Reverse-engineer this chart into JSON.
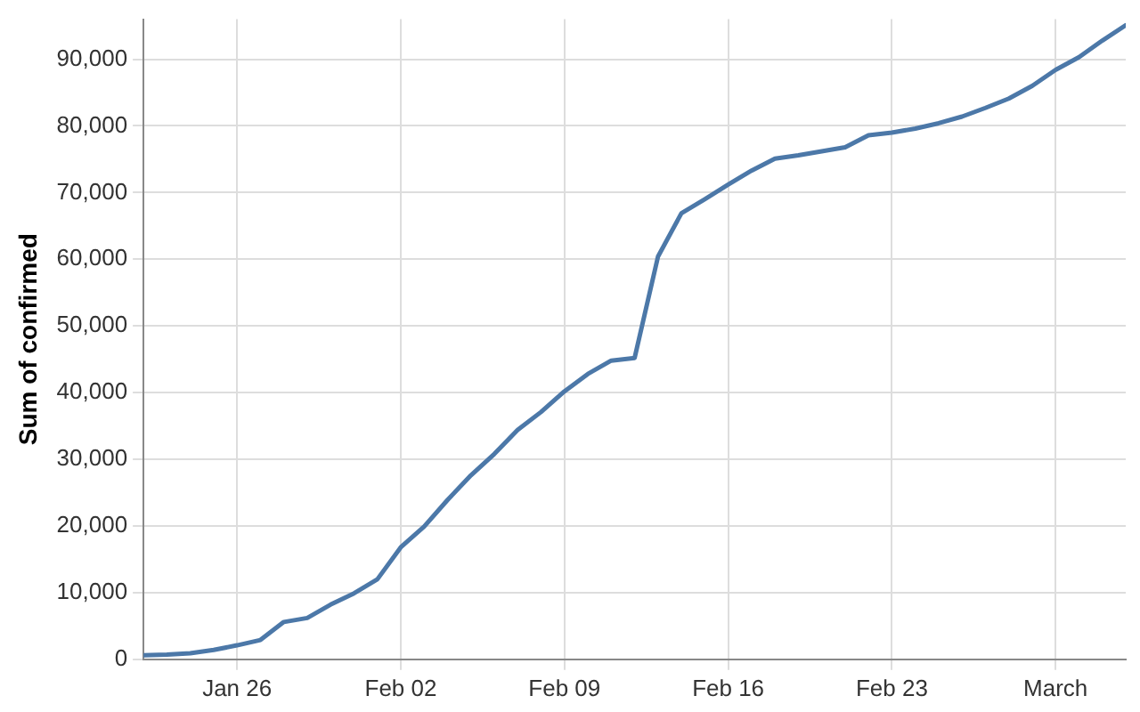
{
  "chart_data": {
    "type": "line",
    "ylabel": "Sum of confirmed",
    "x": [
      "--01-22",
      "--01-23",
      "--01-24",
      "--01-25",
      "--01-26",
      "--01-27",
      "--01-28",
      "--01-29",
      "--01-30",
      "--01-31",
      "--02-01",
      "--02-02",
      "--02-03",
      "--02-04",
      "--02-05",
      "--02-06",
      "--02-07",
      "--02-08",
      "--02-09",
      "--02-10",
      "--02-11",
      "--02-12",
      "--02-13",
      "--02-14",
      "--02-15",
      "--02-16",
      "--02-17",
      "--02-18",
      "--02-19",
      "--02-20",
      "--02-21",
      "--02-22",
      "--02-23",
      "--02-24",
      "--02-25",
      "--02-26",
      "--02-27",
      "--02-28",
      "--02-29",
      "--03-01",
      "--03-02",
      "--03-03",
      "--03-04"
    ],
    "series": [
      {
        "color": "#4c78a8",
        "values": [
          600,
          700,
          900,
          1400,
          2100,
          2900,
          5600,
          6200,
          8200,
          9900,
          12000,
          16800,
          19900,
          23900,
          27600,
          30800,
          34400,
          37100,
          40200,
          42800,
          44800,
          45200,
          60400,
          66900,
          69000,
          71200,
          73300,
          75100,
          75600,
          76200,
          76800,
          78600,
          79000,
          79600,
          80400,
          81400,
          82700,
          84100,
          86000,
          88400,
          90300,
          92800,
          95100
        ]
      }
    ],
    "xlim": [
      "--01-22",
      "--03-04"
    ],
    "xticks": [
      {
        "value": "--01-26",
        "label": "Jan 26"
      },
      {
        "value": "--02-02",
        "label": "Feb 02"
      },
      {
        "value": "--02-09",
        "label": "Feb 09"
      },
      {
        "value": "--02-16",
        "label": "Feb 16"
      },
      {
        "value": "--02-23",
        "label": "Feb 23"
      },
      {
        "value": "--03-01",
        "label": "March"
      }
    ],
    "ylim": [
      0,
      96000
    ],
    "yticks": [
      0,
      {
        "value": 10000,
        "label": "10,000"
      },
      {
        "value": 20000,
        "label": "20,000"
      },
      {
        "value": 30000,
        "label": "30,000"
      },
      {
        "value": 40000,
        "label": "40,000"
      },
      {
        "value": 50000,
        "label": "50,000"
      },
      {
        "value": 60000,
        "label": "60,000"
      },
      {
        "value": 70000,
        "label": "70,000"
      },
      {
        "value": 80000,
        "label": "80,000"
      },
      {
        "value": 90000,
        "label": "90,000"
      }
    ],
    "grid": true,
    "marker": "none",
    "line_style": "solid",
    "legend": false
  }
}
